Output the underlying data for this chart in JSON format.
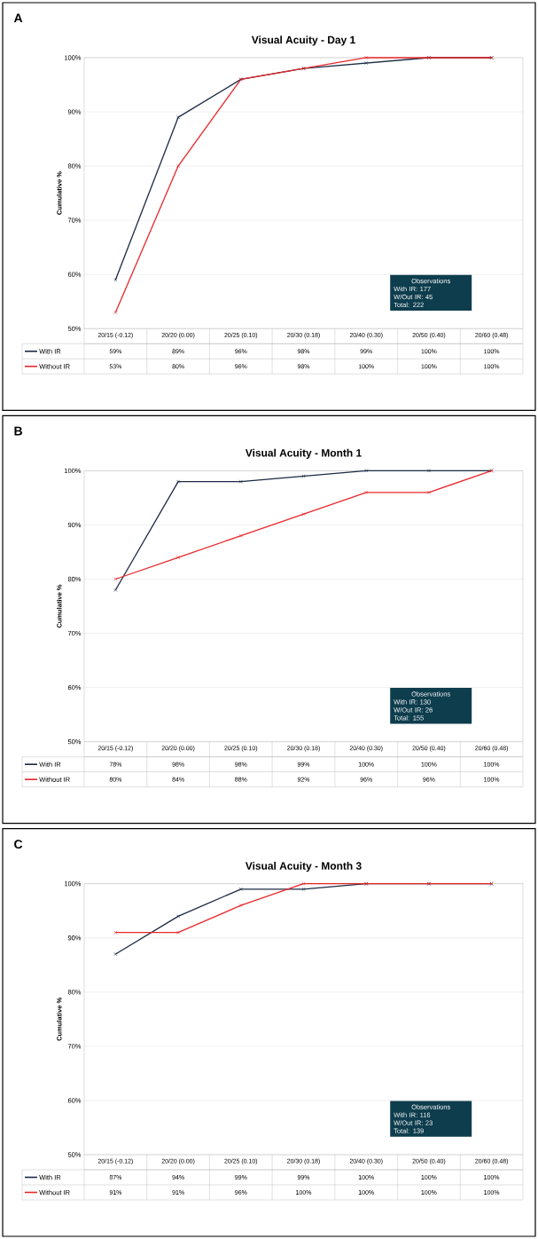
{
  "chart_data": [
    {
      "type": "line",
      "title": "Visual Acuity - Day 1",
      "ylabel": "Cumulative %",
      "categories": [
        "20/15 (-0.12)",
        "20/20 (0.00)",
        "20/25 (0.10)",
        "20/30 (0.18)",
        "20/40 (0.30)",
        "20/50 (0.40)",
        "20/60 (0.48)"
      ],
      "series": [
        {
          "name": "With IR",
          "color": "#1c2a45",
          "values": [
            59,
            89,
            96,
            98,
            99,
            100,
            100
          ],
          "value_labels": [
            "59%",
            "89%",
            "96%",
            "98%",
            "99%",
            "100%",
            "100%"
          ]
        },
        {
          "name": "Without IR",
          "color": "#e8282b",
          "values": [
            53,
            80,
            96,
            98,
            100,
            100,
            100
          ],
          "value_labels": [
            "53%",
            "80%",
            "96%",
            "98%",
            "100%",
            "100%",
            "100%"
          ]
        }
      ],
      "ylim": [
        50,
        100
      ],
      "yticks": [
        {
          "value": 50,
          "label": "50%"
        },
        {
          "value": 60,
          "label": "60%"
        },
        {
          "value": 70,
          "label": "70%"
        },
        {
          "value": 80,
          "label": "80%"
        },
        {
          "value": 90,
          "label": "90%"
        },
        {
          "value": 100,
          "label": "100%"
        }
      ],
      "grid": "y",
      "legend": "bottom",
      "marker": "cross",
      "line_style": "solid",
      "annotations": [
        "A",
        "Observations",
        "With IR: 177",
        "W/Out IR: 45",
        "Total: 222"
      ]
    },
    {
      "type": "line",
      "title": "Visual Acuity - Month 1",
      "ylabel": "Cumulative %",
      "categories": [
        "20/15 (-0.12)",
        "20/20 (0.00)",
        "20/25 (0.10)",
        "20/30 (0.18)",
        "20/40 (0.30)",
        "20/50 (0.40)",
        "20/60 (0.48)"
      ],
      "series": [
        {
          "name": "With IR",
          "color": "#1c2a45",
          "values": [
            78,
            98,
            98,
            99,
            100,
            100,
            100
          ],
          "value_labels": [
            "78%",
            "98%",
            "98%",
            "99%",
            "100%",
            "100%",
            "100%"
          ]
        },
        {
          "name": "Without IR",
          "color": "#e8282b",
          "values": [
            80,
            84,
            88,
            92,
            96,
            96,
            100
          ],
          "value_labels": [
            "80%",
            "84%",
            "88%",
            "92%",
            "96%",
            "96%",
            "100%"
          ]
        }
      ],
      "ylim": [
        50,
        100
      ],
      "yticks": [
        {
          "value": 50,
          "label": "50%"
        },
        {
          "value": 60,
          "label": "60%"
        },
        {
          "value": 70,
          "label": "70%"
        },
        {
          "value": 80,
          "label": "80%"
        },
        {
          "value": 90,
          "label": "90%"
        },
        {
          "value": 100,
          "label": "100%"
        }
      ],
      "grid": "y",
      "legend": "bottom",
      "marker": "cross",
      "line_style": "solid",
      "annotations": [
        "B",
        "Observations",
        "With IR: 130",
        "W/Out IR: 26",
        "Total: 155"
      ]
    },
    {
      "type": "line",
      "title": "Visual Acuity - Month 3",
      "ylabel": "Cumulative %",
      "categories": [
        "20/15 (-0.12)",
        "20/20 (0.00)",
        "20/25 (0.10)",
        "20/30 (0.18)",
        "20/40 (0.30)",
        "20/50 (0.40)",
        "20/60 (0.48)"
      ],
      "series": [
        {
          "name": "With IR",
          "color": "#1c2a45",
          "values": [
            87,
            94,
            99,
            99,
            100,
            100,
            100
          ],
          "value_labels": [
            "87%",
            "94%",
            "99%",
            "99%",
            "100%",
            "100%",
            "100%"
          ]
        },
        {
          "name": "Without IR",
          "color": "#e8282b",
          "values": [
            91,
            91,
            96,
            100,
            100,
            100,
            100
          ],
          "value_labels": [
            "91%",
            "91%",
            "96%",
            "100%",
            "100%",
            "100%",
            "100%"
          ]
        }
      ],
      "ylim": [
        50,
        100
      ],
      "yticks": [
        {
          "value": 50,
          "label": "50%"
        },
        {
          "value": 60,
          "label": "60%"
        },
        {
          "value": 70,
          "label": "70%"
        },
        {
          "value": 80,
          "label": "80%"
        },
        {
          "value": 90,
          "label": "90%"
        },
        {
          "value": 100,
          "label": "100%"
        }
      ],
      "grid": "y",
      "legend": "bottom",
      "marker": "cross",
      "line_style": "solid",
      "annotations": [
        "C",
        "Observations",
        "With IR: 116",
        "W/Out IR: 23",
        "Total: 139"
      ]
    }
  ]
}
